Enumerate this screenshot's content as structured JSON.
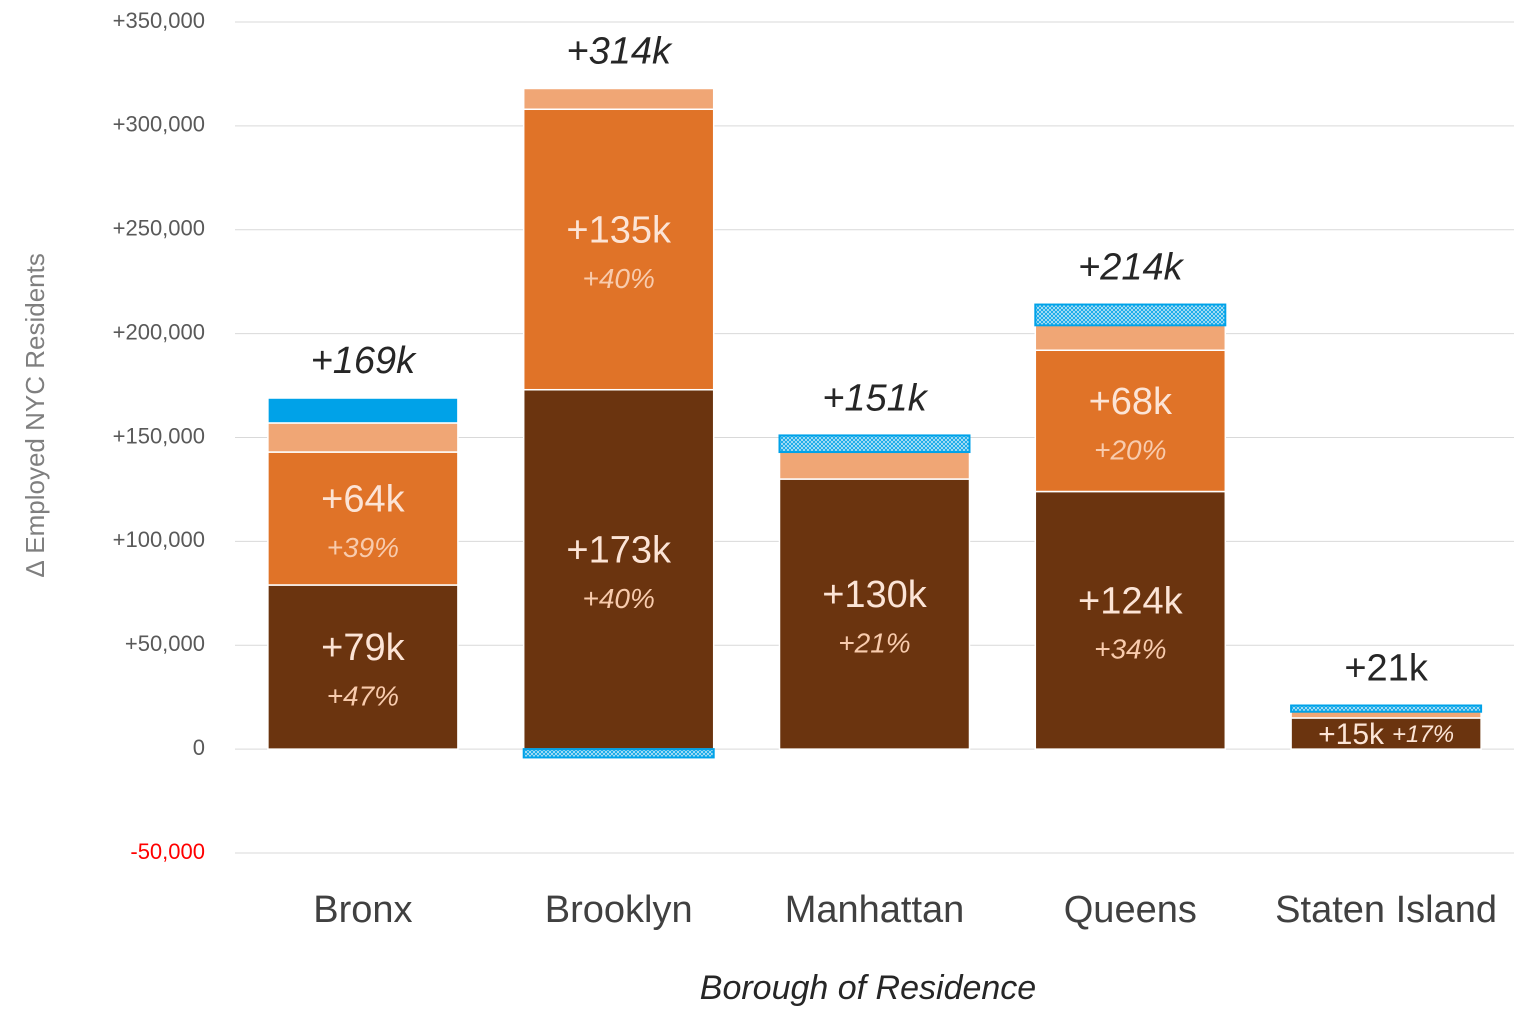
{
  "chart_data": {
    "type": "bar",
    "stacked": true,
    "y_label": "∆ Employed NYC Residents",
    "x_label": "Borough of Residence",
    "categories": [
      "Bronx",
      "Brooklyn",
      "Manhattan",
      "Queens",
      "Staten Island"
    ],
    "series": [
      {
        "color": "#6b340f",
        "values": [
          79000,
          173000,
          130000,
          124000,
          15000
        ],
        "value_labels": [
          "+79k",
          "+173k",
          "+130k",
          "+124k",
          "+15k"
        ],
        "share_labels": [
          "+47%",
          "+40%",
          "+21%",
          "+34%",
          "+17%"
        ]
      },
      {
        "color": "#e07328",
        "values": [
          64000,
          135000,
          0,
          68000,
          0
        ],
        "value_labels": [
          "+64k",
          "+135k",
          null,
          "+68k",
          null
        ],
        "share_labels": [
          "+39%",
          "+40%",
          null,
          "+20%",
          null
        ]
      },
      {
        "color": "#f0a675",
        "values": [
          14000,
          10000,
          13000,
          12000,
          3000
        ]
      },
      {
        "color": "#00a2e8",
        "values": [
          12000,
          -4000,
          8000,
          10000,
          3000
        ],
        "hatched": [
          false,
          true,
          true,
          true,
          true
        ]
      }
    ],
    "totals": [
      169000,
      314000,
      151000,
      214000,
      21000
    ],
    "total_labels": [
      "+169k",
      "+314k",
      "+151k",
      "+214k",
      "+21k"
    ],
    "ylim": [
      -50000,
      350000
    ],
    "yticks": [
      {
        "value": -50000,
        "label": "-50,000"
      },
      0,
      {
        "value": 50000,
        "label": "+50,000"
      },
      {
        "value": 100000,
        "label": "+100,000"
      },
      {
        "value": 150000,
        "label": "+150,000"
      },
      {
        "value": 200000,
        "label": "+200,000"
      },
      {
        "value": 250000,
        "label": "+250,000"
      },
      {
        "value": 300000,
        "label": "+300,000"
      },
      {
        "value": 350000,
        "label": "+350,000"
      }
    ],
    "grid": true
  }
}
